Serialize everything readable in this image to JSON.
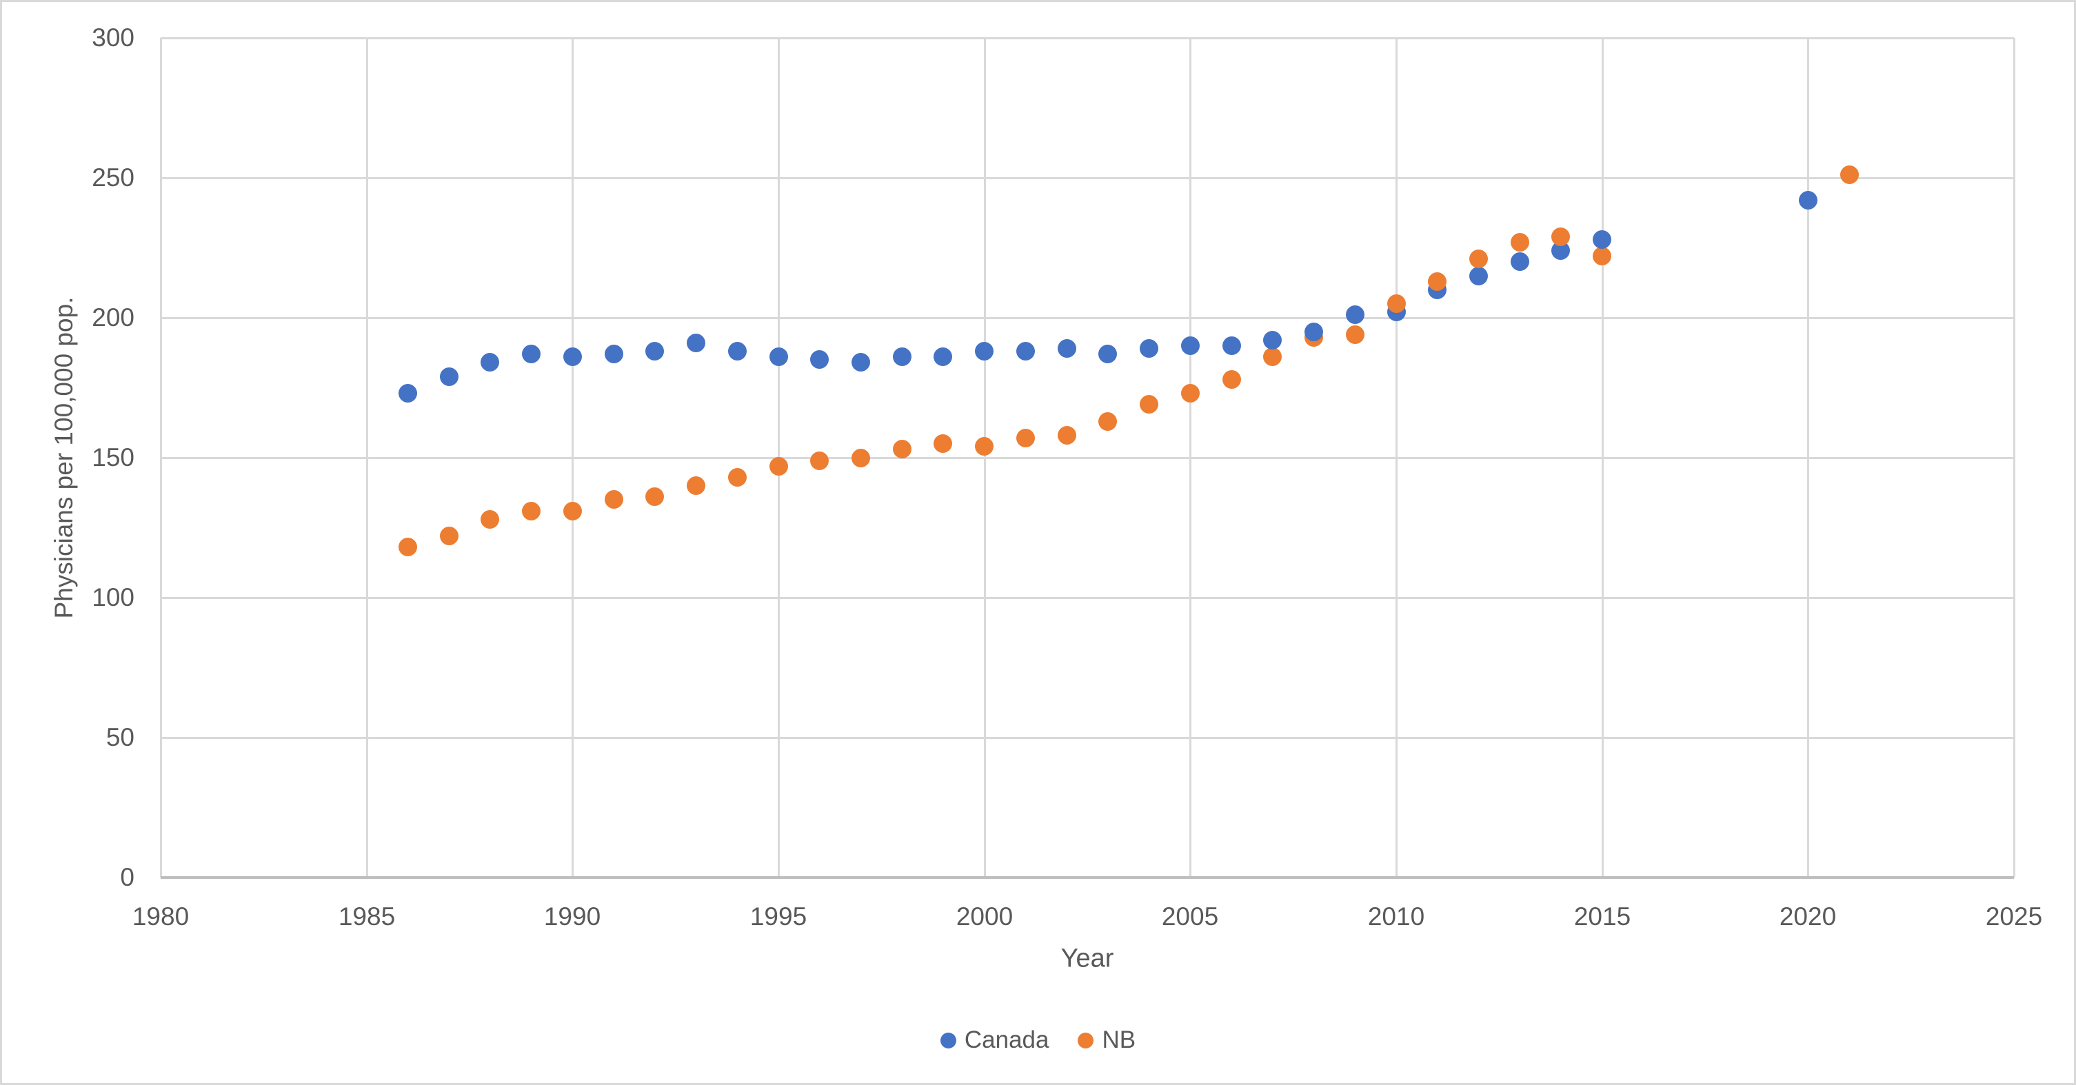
{
  "chart_data": {
    "type": "scatter",
    "title": "",
    "xlabel": "Year",
    "ylabel": "Physicians per 100,000 pop.",
    "xlim": [
      1980,
      2025
    ],
    "ylim": [
      0,
      300
    ],
    "x_ticks": [
      1980,
      1985,
      1990,
      1995,
      2000,
      2005,
      2010,
      2015,
      2020,
      2025
    ],
    "y_ticks": [
      0,
      50,
      100,
      150,
      200,
      250,
      300
    ],
    "grid": true,
    "legend_position": "bottom-center",
    "series": [
      {
        "name": "Canada",
        "color": "#4472C4",
        "points": [
          [
            1986,
            173
          ],
          [
            1987,
            179
          ],
          [
            1988,
            184
          ],
          [
            1989,
            187
          ],
          [
            1990,
            186
          ],
          [
            1991,
            187
          ],
          [
            1992,
            188
          ],
          [
            1993,
            191
          ],
          [
            1994,
            188
          ],
          [
            1995,
            186
          ],
          [
            1996,
            185
          ],
          [
            1997,
            184
          ],
          [
            1998,
            186
          ],
          [
            1999,
            186
          ],
          [
            2000,
            188
          ],
          [
            2001,
            188
          ],
          [
            2002,
            189
          ],
          [
            2003,
            187
          ],
          [
            2004,
            189
          ],
          [
            2005,
            190
          ],
          [
            2006,
            190
          ],
          [
            2007,
            192
          ],
          [
            2008,
            195
          ],
          [
            2009,
            201
          ],
          [
            2010,
            202
          ],
          [
            2011,
            210
          ],
          [
            2012,
            215
          ],
          [
            2013,
            220
          ],
          [
            2014,
            224
          ],
          [
            2015,
            228
          ],
          [
            2020,
            242
          ]
        ]
      },
      {
        "name": "NB",
        "color": "#ED7D31",
        "points": [
          [
            1986,
            118
          ],
          [
            1987,
            122
          ],
          [
            1988,
            128
          ],
          [
            1989,
            131
          ],
          [
            1990,
            131
          ],
          [
            1991,
            135
          ],
          [
            1992,
            136
          ],
          [
            1993,
            140
          ],
          [
            1994,
            143
          ],
          [
            1995,
            147
          ],
          [
            1996,
            149
          ],
          [
            1997,
            150
          ],
          [
            1998,
            153
          ],
          [
            1999,
            155
          ],
          [
            2000,
            154
          ],
          [
            2001,
            157
          ],
          [
            2002,
            158
          ],
          [
            2003,
            163
          ],
          [
            2004,
            169
          ],
          [
            2005,
            173
          ],
          [
            2006,
            178
          ],
          [
            2007,
            186
          ],
          [
            2008,
            193
          ],
          [
            2009,
            194
          ],
          [
            2010,
            205
          ],
          [
            2011,
            213
          ],
          [
            2012,
            221
          ],
          [
            2013,
            227
          ],
          [
            2014,
            229
          ],
          [
            2015,
            222
          ],
          [
            2021,
            251
          ]
        ]
      }
    ]
  },
  "layout_colors": {
    "gridline": "#d9d9d9",
    "axis_line": "#bfbfbf",
    "text": "#595959",
    "background": "#ffffff"
  }
}
